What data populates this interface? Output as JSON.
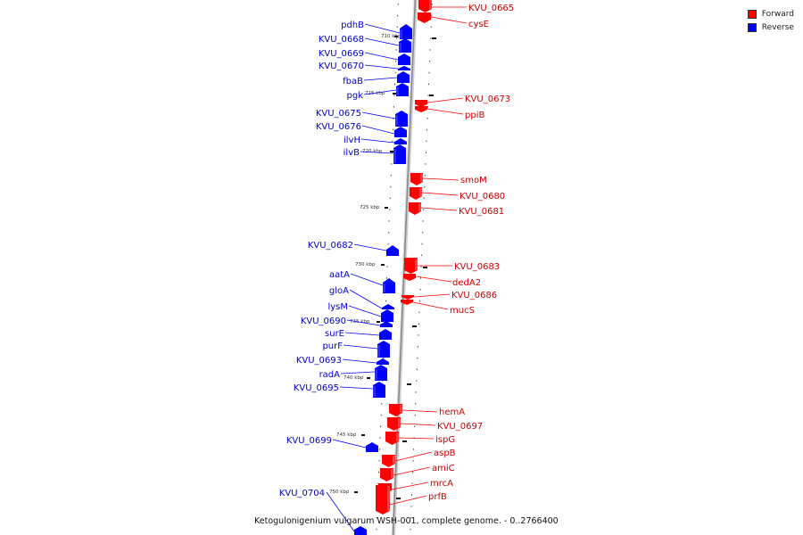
{
  "caption": "Ketogulonigenium vulgarum WSH-001, complete genome. - 0..2766400",
  "legend": [
    {
      "label": "Forward",
      "color": "#ff0000"
    },
    {
      "label": "Reverse",
      "color": "#0000ff"
    }
  ],
  "colors": {
    "forward": "#ff0000",
    "reverse": "#0000ff",
    "axis": "#888888"
  },
  "kbp_ticks": [
    "710 kbp",
    "715 kbp",
    "720 kbp",
    "725 kbp",
    "730 kbp",
    "735 kbp",
    "740 kbp",
    "745 kbp",
    "750 kbp"
  ],
  "reverse_genes": [
    "pdhB",
    "KVU_0668",
    "KVU_0669",
    "KVU_0670",
    "fbaB",
    "pgk",
    "KVU_0675",
    "KVU_0676",
    "ilvH",
    "ilvB",
    "KVU_0682",
    "aatA",
    "gloA",
    "lysM",
    "KVU_0690",
    "surE",
    "purF",
    "KVU_0693",
    "radA",
    "KVU_0695",
    "KVU_0699",
    "KVU_0704"
  ],
  "forward_genes": [
    "KVU_0665",
    "cysE",
    "KVU_0673",
    "ppiB",
    "smoM",
    "KVU_0680",
    "KVU_0681",
    "KVU_0683",
    "dedA2",
    "KVU_0686",
    "mucS",
    "hemA",
    "KVU_0697",
    "ispG",
    "aspB",
    "amiC",
    "mrcA",
    "prfB"
  ]
}
